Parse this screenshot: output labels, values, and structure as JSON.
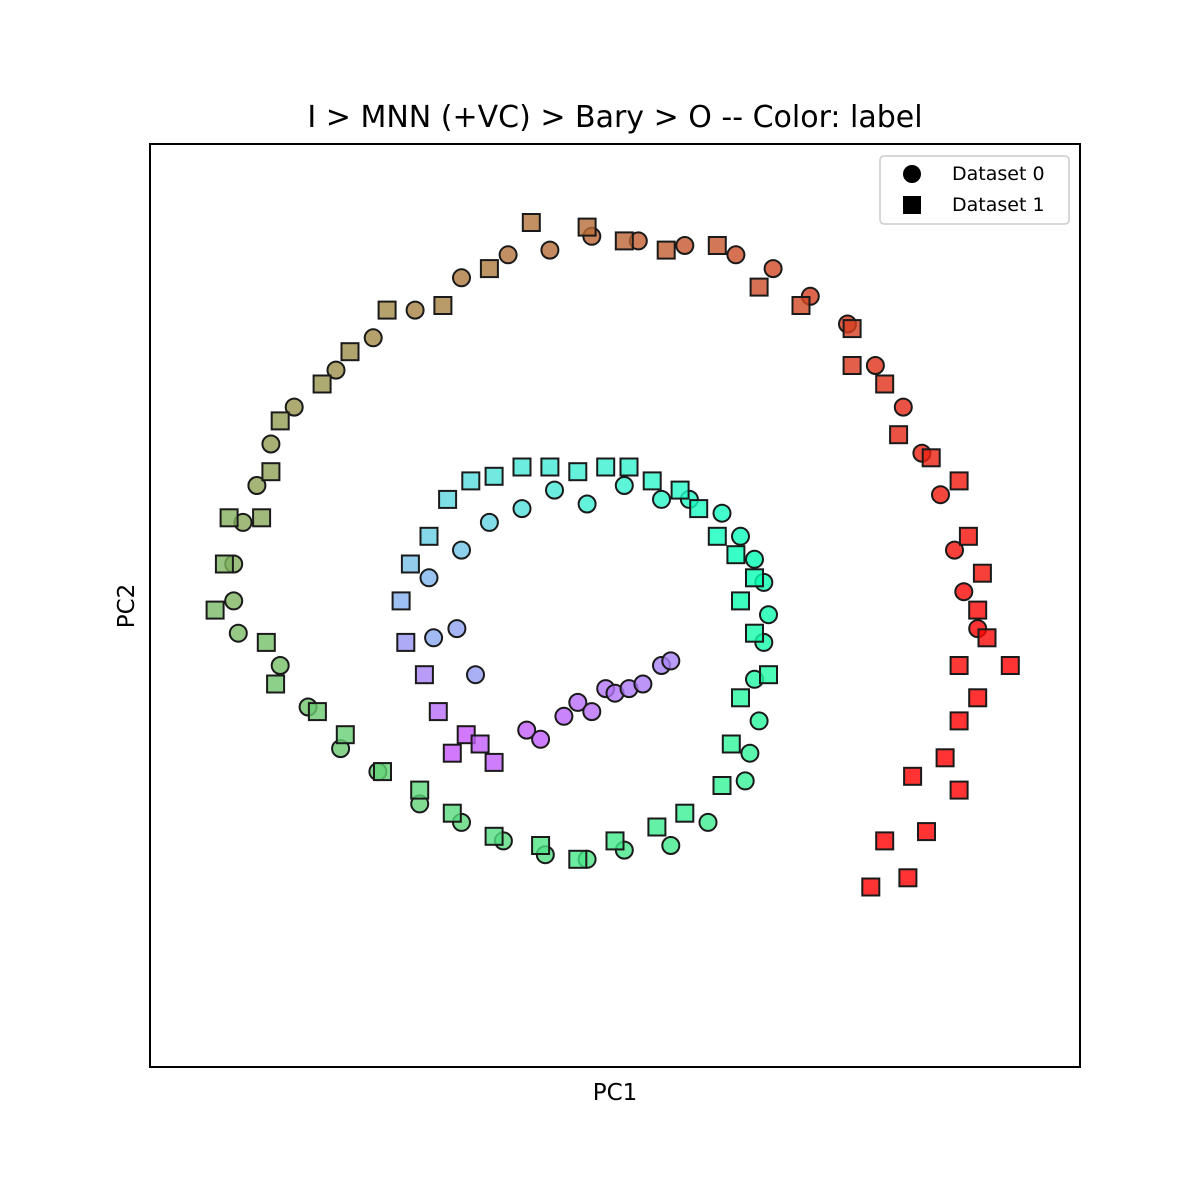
{
  "chart_data": {
    "type": "scatter",
    "title": "I > MNN (+VC) > Bary > O -- Color: label",
    "xlabel": "PC1",
    "ylabel": "PC2",
    "xlim": [
      -1.0,
      1.0
    ],
    "ylim": [
      -1.0,
      1.0
    ],
    "grid": false,
    "ticks_visible": false,
    "legend": {
      "position": "top-right",
      "entries": [
        {
          "name": "Dataset 0",
          "marker": "circle"
        },
        {
          "name": "Dataset 1",
          "marker": "square"
        }
      ]
    },
    "color_by": "label",
    "colormap": "rainbow",
    "series": [
      {
        "name": "Dataset 0",
        "marker": "circle",
        "points": [
          [
            -0.19,
            -0.27,
            0.12
          ],
          [
            -0.16,
            -0.29,
            0.12
          ],
          [
            -0.11,
            -0.24,
            0.13
          ],
          [
            -0.08,
            -0.21,
            0.14
          ],
          [
            -0.05,
            -0.23,
            0.14
          ],
          [
            -0.02,
            -0.18,
            0.15
          ],
          [
            0.0,
            -0.19,
            0.15
          ],
          [
            0.03,
            -0.18,
            0.16
          ],
          [
            0.06,
            -0.17,
            0.16
          ],
          [
            0.1,
            -0.13,
            0.17
          ],
          [
            0.12,
            -0.12,
            0.17
          ],
          [
            -0.3,
            -0.15,
            0.21
          ],
          [
            -0.34,
            -0.05,
            0.22
          ],
          [
            -0.39,
            -0.07,
            0.23
          ],
          [
            -0.4,
            0.06,
            0.25
          ],
          [
            -0.33,
            0.12,
            0.28
          ],
          [
            -0.27,
            0.18,
            0.31
          ],
          [
            -0.2,
            0.21,
            0.34
          ],
          [
            -0.13,
            0.25,
            0.36
          ],
          [
            -0.06,
            0.22,
            0.38
          ],
          [
            0.02,
            0.26,
            0.4
          ],
          [
            0.1,
            0.23,
            0.42
          ],
          [
            0.16,
            0.23,
            0.44
          ],
          [
            0.23,
            0.2,
            0.46
          ],
          [
            0.27,
            0.15,
            0.48
          ],
          [
            0.3,
            0.1,
            0.5
          ],
          [
            0.32,
            0.05,
            0.52
          ],
          [
            0.33,
            -0.02,
            0.53
          ],
          [
            0.32,
            -0.08,
            0.54
          ],
          [
            0.3,
            -0.16,
            0.56
          ],
          [
            0.31,
            -0.25,
            0.58
          ],
          [
            0.29,
            -0.32,
            0.59
          ],
          [
            0.28,
            -0.38,
            0.6
          ],
          [
            0.2,
            -0.47,
            0.62
          ],
          [
            0.12,
            -0.52,
            0.63
          ],
          [
            0.02,
            -0.53,
            0.64
          ],
          [
            -0.06,
            -0.55,
            0.65
          ],
          [
            -0.15,
            -0.54,
            0.66
          ],
          [
            -0.24,
            -0.51,
            0.67
          ],
          [
            -0.33,
            -0.47,
            0.68
          ],
          [
            -0.42,
            -0.43,
            0.69
          ],
          [
            -0.51,
            -0.36,
            0.7
          ],
          [
            -0.59,
            -0.31,
            0.71
          ],
          [
            -0.66,
            -0.22,
            0.72
          ],
          [
            -0.72,
            -0.13,
            0.73
          ],
          [
            -0.81,
            -0.06,
            0.74
          ],
          [
            -0.82,
            0.01,
            0.75
          ],
          [
            -0.82,
            0.09,
            0.76
          ],
          [
            -0.8,
            0.18,
            0.77
          ],
          [
            -0.77,
            0.26,
            0.78
          ],
          [
            -0.74,
            0.35,
            0.79
          ],
          [
            -0.69,
            0.43,
            0.8
          ],
          [
            -0.6,
            0.51,
            0.81
          ],
          [
            -0.52,
            0.58,
            0.82
          ],
          [
            -0.43,
            0.64,
            0.83
          ],
          [
            -0.33,
            0.71,
            0.84
          ],
          [
            -0.23,
            0.76,
            0.85
          ],
          [
            -0.14,
            0.77,
            0.86
          ],
          [
            -0.05,
            0.8,
            0.87
          ],
          [
            0.05,
            0.79,
            0.88
          ],
          [
            0.15,
            0.78,
            0.89
          ],
          [
            0.26,
            0.76,
            0.9
          ],
          [
            0.34,
            0.73,
            0.91
          ],
          [
            0.42,
            0.67,
            0.92
          ],
          [
            0.5,
            0.61,
            0.93
          ],
          [
            0.56,
            0.52,
            0.94
          ],
          [
            0.62,
            0.43,
            0.95
          ],
          [
            0.66,
            0.33,
            0.96
          ],
          [
            0.7,
            0.24,
            0.97
          ],
          [
            0.73,
            0.12,
            0.98
          ],
          [
            0.75,
            0.03,
            0.99
          ],
          [
            0.78,
            -0.05,
            1.0
          ]
        ]
      },
      {
        "name": "Dataset 1",
        "marker": "square",
        "points": [
          [
            -0.35,
            -0.32,
            0.11
          ],
          [
            -0.32,
            -0.28,
            0.11
          ],
          [
            -0.29,
            -0.3,
            0.12
          ],
          [
            -0.26,
            -0.34,
            0.12
          ],
          [
            -0.38,
            -0.23,
            0.14
          ],
          [
            -0.41,
            -0.15,
            0.17
          ],
          [
            -0.45,
            -0.08,
            0.2
          ],
          [
            -0.46,
            0.01,
            0.24
          ],
          [
            -0.44,
            0.09,
            0.27
          ],
          [
            -0.4,
            0.15,
            0.3
          ],
          [
            -0.36,
            0.23,
            0.32
          ],
          [
            -0.31,
            0.27,
            0.33
          ],
          [
            -0.26,
            0.28,
            0.35
          ],
          [
            -0.2,
            0.3,
            0.36
          ],
          [
            -0.14,
            0.3,
            0.37
          ],
          [
            -0.08,
            0.29,
            0.38
          ],
          [
            -0.02,
            0.3,
            0.39
          ],
          [
            0.03,
            0.3,
            0.4
          ],
          [
            0.08,
            0.27,
            0.41
          ],
          [
            0.14,
            0.25,
            0.43
          ],
          [
            0.18,
            0.21,
            0.45
          ],
          [
            0.22,
            0.15,
            0.47
          ],
          [
            0.26,
            0.11,
            0.49
          ],
          [
            0.3,
            0.06,
            0.51
          ],
          [
            0.27,
            0.01,
            0.52
          ],
          [
            0.3,
            -0.06,
            0.54
          ],
          [
            0.33,
            -0.15,
            0.56
          ],
          [
            0.27,
            -0.2,
            0.57
          ],
          [
            0.25,
            -0.3,
            0.59
          ],
          [
            0.23,
            -0.39,
            0.6
          ],
          [
            0.15,
            -0.45,
            0.61
          ],
          [
            0.09,
            -0.48,
            0.62
          ],
          [
            0.0,
            -0.51,
            0.63
          ],
          [
            -0.08,
            -0.55,
            0.64
          ],
          [
            -0.16,
            -0.52,
            0.65
          ],
          [
            -0.26,
            -0.5,
            0.66
          ],
          [
            -0.35,
            -0.45,
            0.67
          ],
          [
            -0.42,
            -0.4,
            0.68
          ],
          [
            -0.5,
            -0.36,
            0.69
          ],
          [
            -0.58,
            -0.28,
            0.7
          ],
          [
            -0.64,
            -0.23,
            0.71
          ],
          [
            -0.73,
            -0.17,
            0.72
          ],
          [
            -0.75,
            -0.08,
            0.73
          ],
          [
            -0.86,
            -0.01,
            0.74
          ],
          [
            -0.84,
            0.09,
            0.75
          ],
          [
            -0.83,
            0.19,
            0.76
          ],
          [
            -0.76,
            0.19,
            0.77
          ],
          [
            -0.74,
            0.29,
            0.78
          ],
          [
            -0.72,
            0.4,
            0.79
          ],
          [
            -0.63,
            0.48,
            0.8
          ],
          [
            -0.57,
            0.55,
            0.81
          ],
          [
            -0.49,
            0.64,
            0.82
          ],
          [
            -0.37,
            0.65,
            0.83
          ],
          [
            -0.27,
            0.73,
            0.84
          ],
          [
            -0.18,
            0.83,
            0.85
          ],
          [
            -0.06,
            0.82,
            0.86
          ],
          [
            0.02,
            0.79,
            0.87
          ],
          [
            0.11,
            0.77,
            0.88
          ],
          [
            0.22,
            0.78,
            0.89
          ],
          [
            0.31,
            0.69,
            0.9
          ],
          [
            0.4,
            0.65,
            0.91
          ],
          [
            0.51,
            0.6,
            0.92
          ],
          [
            0.51,
            0.52,
            0.93
          ],
          [
            0.58,
            0.48,
            0.94
          ],
          [
            0.61,
            0.37,
            0.95
          ],
          [
            0.68,
            0.32,
            0.96
          ],
          [
            0.74,
            0.27,
            0.97
          ],
          [
            0.76,
            0.15,
            0.98
          ],
          [
            0.79,
            0.07,
            0.98
          ],
          [
            0.78,
            -0.01,
            0.99
          ],
          [
            0.8,
            -0.07,
            0.99
          ],
          [
            0.74,
            -0.13,
            0.99
          ],
          [
            0.78,
            -0.2,
            1.0
          ],
          [
            0.85,
            -0.13,
            1.0
          ],
          [
            0.74,
            -0.25,
            1.0
          ],
          [
            0.71,
            -0.33,
            1.0
          ],
          [
            0.74,
            -0.4,
            1.0
          ],
          [
            0.64,
            -0.37,
            1.0
          ],
          [
            0.67,
            -0.49,
            1.0
          ],
          [
            0.58,
            -0.51,
            1.0
          ],
          [
            0.63,
            -0.59,
            1.0
          ],
          [
            0.55,
            -0.61,
            1.0
          ]
        ]
      }
    ]
  }
}
